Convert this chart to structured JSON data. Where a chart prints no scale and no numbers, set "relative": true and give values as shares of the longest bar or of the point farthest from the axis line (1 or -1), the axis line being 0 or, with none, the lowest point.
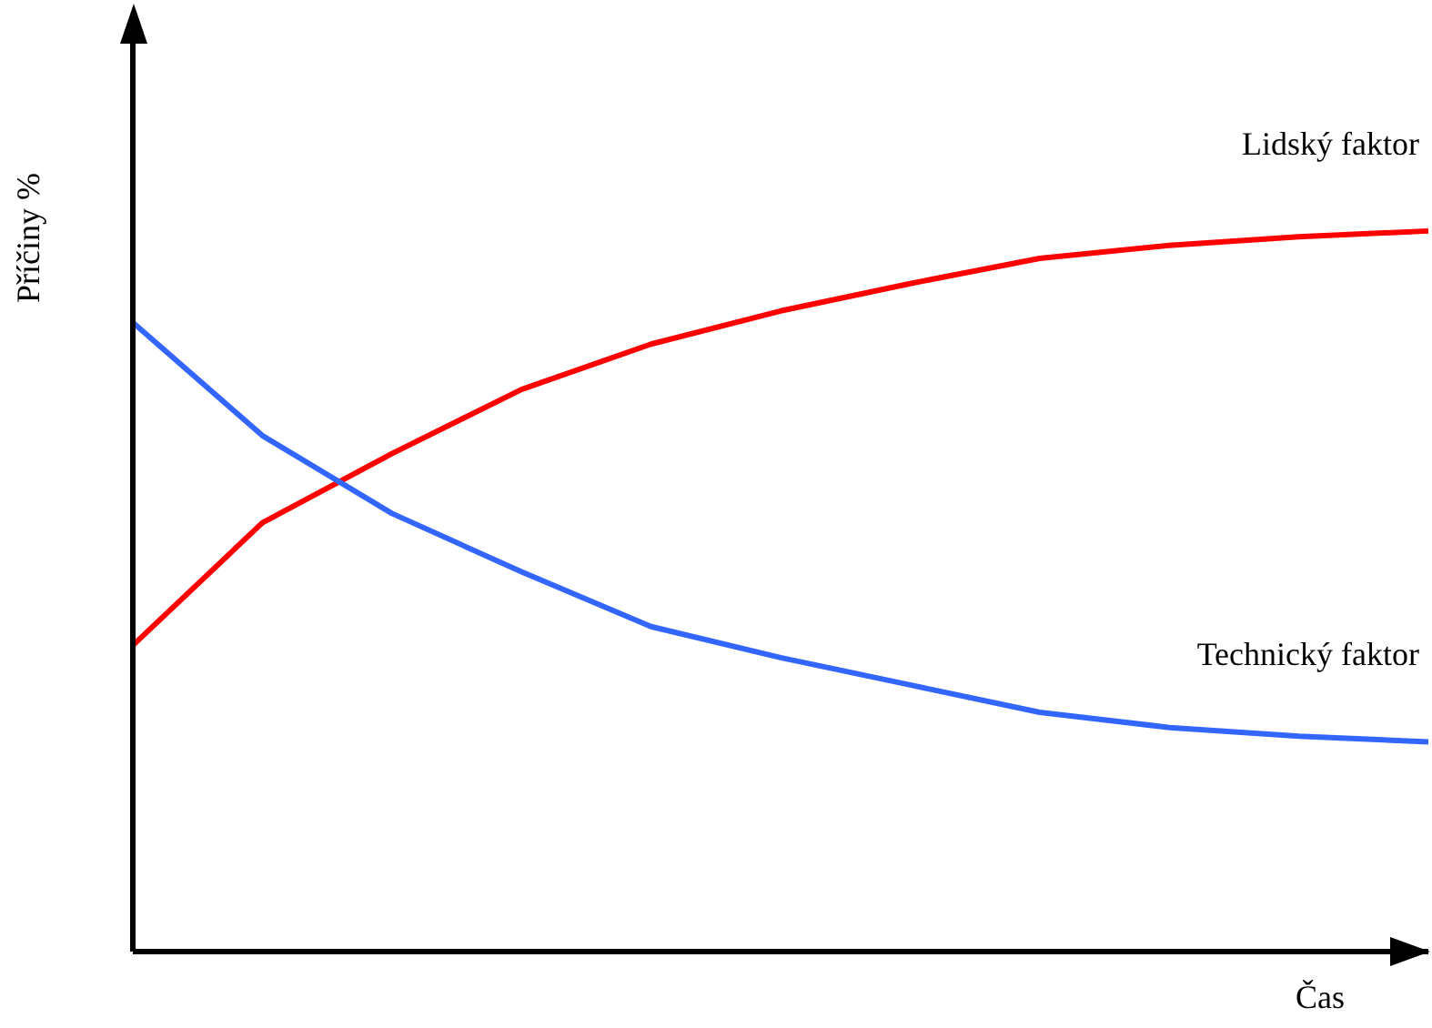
{
  "chart_data": {
    "type": "line",
    "relative": true,
    "xlabel": "Čas",
    "ylabel": "Příčiny %",
    "categories": [
      null,
      null,
      null,
      null,
      null,
      null,
      null,
      null,
      null,
      null,
      null
    ],
    "marker": "none",
    "series": [
      {
        "name": "Lidský faktor",
        "color": "#ff0000",
        "values": [
          0.425,
          0.595,
          0.691,
          0.78,
          0.843,
          0.889,
          0.927,
          0.962,
          0.98,
          0.992,
          1
        ]
      },
      {
        "name": "Technický faktor",
        "color": "#3366ff",
        "values": [
          0.873,
          0.716,
          0.608,
          0.527,
          0.451,
          0.408,
          0.37,
          0.332,
          0.311,
          0.299,
          0.291
        ]
      }
    ]
  }
}
